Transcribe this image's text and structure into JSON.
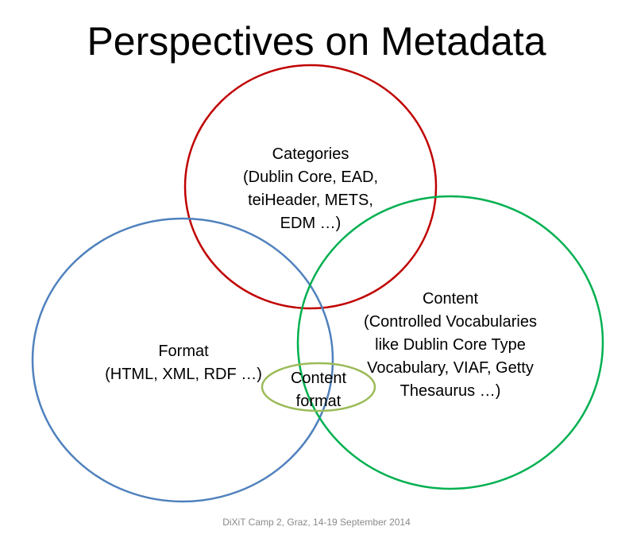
{
  "slide": {
    "title": "Perspectives on Metadata",
    "footer": "DiXiT Camp 2, Graz, 14-19 September 2014"
  },
  "diagram": {
    "type": "venn",
    "sets": [
      {
        "id": "categories",
        "color": "#C00000",
        "lines": [
          "Categories",
          "(Dublin Core, EAD,",
          "teiHeader, METS,",
          "EDM …)"
        ]
      },
      {
        "id": "format",
        "color": "#4F81BD",
        "lines": [
          "Format",
          "(HTML, XML, RDF …)"
        ]
      },
      {
        "id": "content",
        "color": "#00B050",
        "lines": [
          "Content",
          "(Controlled Vocabularies",
          "like Dublin Core Type",
          "Vocabulary, VIAF, Getty",
          "Thesaurus …)"
        ]
      }
    ],
    "intersection": {
      "id": "content-format",
      "color": "#9BBB59",
      "lines": [
        "Content",
        "format"
      ]
    }
  }
}
